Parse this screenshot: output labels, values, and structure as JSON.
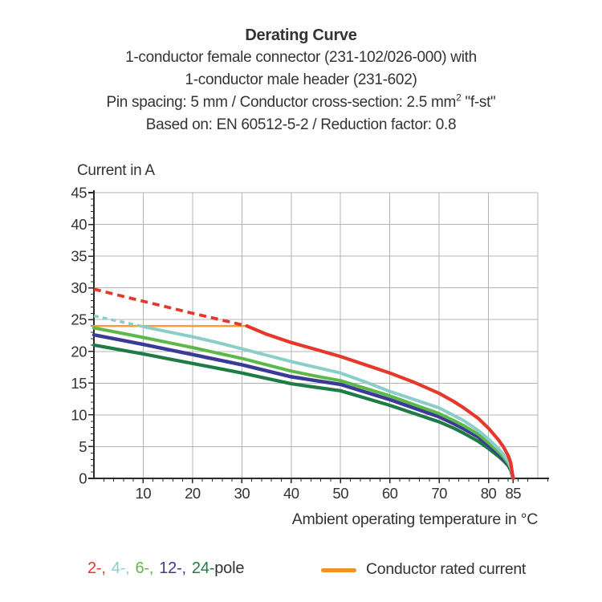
{
  "header": {
    "title": "Derating Curve",
    "line2": "1-conductor female connector (231-102/026-000) with",
    "line3": "1-conductor male header (231-602)",
    "line4_pre": "Pin spacing: 5 mm / Conductor cross-section: 2.5 mm",
    "line4_sup": "2",
    "line4_post": " \"f-st\"",
    "line5": "Based on: EN 60512-5-2 / Reduction factor: 0.8"
  },
  "chart_data": {
    "type": "line",
    "title": "Derating Curve",
    "ylabel": "Current in A",
    "xlabel": "Ambient operating temperature in °C",
    "x_range": [
      0,
      90
    ],
    "y_range": [
      0,
      45
    ],
    "x_major_ticks": [
      10,
      20,
      30,
      40,
      50,
      60,
      70,
      80,
      85
    ],
    "x_minor_step": 2,
    "y_major_ticks": [
      0,
      5,
      10,
      15,
      20,
      25,
      30,
      35,
      40,
      45
    ],
    "y_minor_step": 1,
    "grid": {
      "x_step": 10,
      "y_step": 5,
      "color": "#B3B3B3"
    },
    "axis_color": "#2A2A2A",
    "tick_label_color": "#333333",
    "rated_current": {
      "label": "Conductor rated current",
      "value": 24,
      "x_from": 0,
      "x_to": 31,
      "color": "#F2A12F",
      "width": 2.5
    },
    "series": [
      {
        "name": "24-pole",
        "color": "#1F7B45",
        "width": 4.2,
        "points": [
          [
            0,
            21.0
          ],
          [
            5,
            20.3
          ],
          [
            10,
            19.6
          ],
          [
            15,
            18.85
          ],
          [
            20,
            18.1
          ],
          [
            25,
            17.35
          ],
          [
            30,
            16.6
          ],
          [
            35,
            15.75
          ],
          [
            40,
            14.9
          ],
          [
            45,
            14.35
          ],
          [
            50,
            13.8
          ],
          [
            55,
            12.65
          ],
          [
            60,
            11.5
          ],
          [
            65,
            10.2
          ],
          [
            70,
            8.9
          ],
          [
            73,
            7.9
          ],
          [
            75,
            7.1
          ],
          [
            78,
            5.8
          ],
          [
            80,
            4.7
          ],
          [
            82,
            3.5
          ],
          [
            83,
            2.8
          ],
          [
            84,
            2.0
          ],
          [
            84.5,
            1.3
          ],
          [
            85,
            0
          ]
        ]
      },
      {
        "name": "12-pole",
        "color": "#3B3B97",
        "width": 4.5,
        "points": [
          [
            0,
            22.6
          ],
          [
            5,
            21.85
          ],
          [
            10,
            21.1
          ],
          [
            15,
            20.3
          ],
          [
            20,
            19.5
          ],
          [
            25,
            18.7
          ],
          [
            30,
            17.9
          ],
          [
            35,
            16.95
          ],
          [
            40,
            16.0
          ],
          [
            45,
            15.4
          ],
          [
            50,
            14.8
          ],
          [
            55,
            13.6
          ],
          [
            60,
            12.4
          ],
          [
            65,
            11.05
          ],
          [
            70,
            9.7
          ],
          [
            73,
            8.6
          ],
          [
            75,
            7.8
          ],
          [
            78,
            6.5
          ],
          [
            80,
            5.2
          ],
          [
            82,
            3.9
          ],
          [
            83,
            3.1
          ],
          [
            84,
            2.2
          ],
          [
            84.5,
            1.5
          ],
          [
            85,
            0
          ]
        ]
      },
      {
        "name": "6-pole",
        "color": "#5CB848",
        "width": 4,
        "points": [
          [
            0,
            23.7
          ],
          [
            5,
            22.95
          ],
          [
            10,
            22.2
          ],
          [
            15,
            21.4
          ],
          [
            20,
            20.6
          ],
          [
            25,
            19.75
          ],
          [
            30,
            18.9
          ],
          [
            35,
            17.9
          ],
          [
            40,
            16.9
          ],
          [
            45,
            16.1
          ],
          [
            50,
            15.4
          ],
          [
            55,
            14.2
          ],
          [
            60,
            13.0
          ],
          [
            65,
            11.6
          ],
          [
            70,
            10.2
          ],
          [
            73,
            9.1
          ],
          [
            75,
            8.3
          ],
          [
            78,
            6.9
          ],
          [
            80,
            5.6
          ],
          [
            82,
            4.2
          ],
          [
            83,
            3.4
          ],
          [
            84,
            2.4
          ],
          [
            84.5,
            1.6
          ],
          [
            85,
            0
          ]
        ]
      },
      {
        "name": "4-pole",
        "color": "#8BCEC9",
        "width": 4,
        "dashed_until_x": 10,
        "dash": "6 5",
        "points": [
          [
            0,
            25.6
          ],
          [
            5,
            24.75
          ],
          [
            10,
            23.9
          ],
          [
            15,
            23.1
          ],
          [
            20,
            22.3
          ],
          [
            25,
            21.4
          ],
          [
            30,
            20.4
          ],
          [
            35,
            19.4
          ],
          [
            40,
            18.4
          ],
          [
            45,
            17.5
          ],
          [
            50,
            16.6
          ],
          [
            55,
            15.2
          ],
          [
            60,
            13.7
          ],
          [
            65,
            12.4
          ],
          [
            70,
            11.1
          ],
          [
            73,
            9.9
          ],
          [
            75,
            9.1
          ],
          [
            78,
            7.5
          ],
          [
            80,
            6.2
          ],
          [
            82,
            4.7
          ],
          [
            83,
            3.8
          ],
          [
            84,
            2.7
          ],
          [
            84.5,
            1.8
          ],
          [
            85,
            0
          ]
        ]
      },
      {
        "name": "2-pole",
        "color": "#E5382B",
        "width": 4.2,
        "dashed_until_x": 31,
        "dash": "9 6",
        "points": [
          [
            0,
            29.8
          ],
          [
            5,
            28.85
          ],
          [
            10,
            27.9
          ],
          [
            15,
            26.95
          ],
          [
            20,
            26.0
          ],
          [
            25,
            25.1
          ],
          [
            31,
            24.0
          ],
          [
            35,
            22.7
          ],
          [
            40,
            21.4
          ],
          [
            45,
            20.3
          ],
          [
            50,
            19.2
          ],
          [
            55,
            17.9
          ],
          [
            60,
            16.6
          ],
          [
            65,
            15.1
          ],
          [
            70,
            13.4
          ],
          [
            73,
            12.1
          ],
          [
            75,
            11.1
          ],
          [
            78,
            9.4
          ],
          [
            80,
            7.9
          ],
          [
            82,
            6.1
          ],
          [
            83,
            5.0
          ],
          [
            84,
            3.6
          ],
          [
            84.5,
            2.5
          ],
          [
            85,
            0
          ]
        ]
      }
    ]
  },
  "legend": {
    "pole_items": [
      {
        "label": "2-,",
        "color": "#E5382B"
      },
      {
        "label": "4-,",
        "color": "#8BCEC9"
      },
      {
        "label": "6-,",
        "color": "#5CB848"
      },
      {
        "label": "12-,",
        "color": "#3B3B97"
      },
      {
        "label": "24-",
        "color": "#1F7B45"
      }
    ],
    "suffix": "pole",
    "rated": {
      "label": "Conductor rated current",
      "color": "#F0941F"
    }
  }
}
